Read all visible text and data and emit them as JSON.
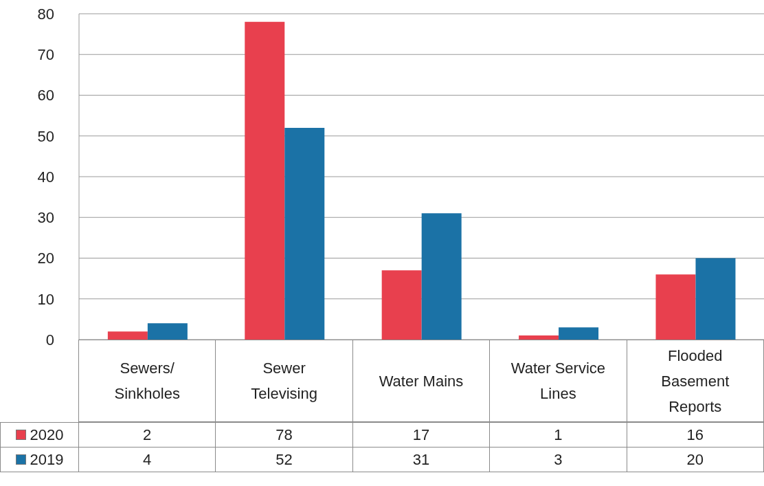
{
  "chart_data": {
    "type": "bar",
    "categories": [
      "Sewers/Sinkholes",
      "Sewer Televising",
      "Water Mains",
      "Water Service Lines",
      "Flooded Basement Reports"
    ],
    "series": [
      {
        "name": "2020",
        "color": "#e8404e",
        "values": [
          2,
          78,
          17,
          1,
          16
        ]
      },
      {
        "name": "2019",
        "color": "#1b72a6",
        "values": [
          4,
          52,
          31,
          3,
          20
        ]
      }
    ],
    "ylim": [
      0,
      80
    ],
    "yticks": [
      0,
      10,
      20,
      30,
      40,
      50,
      60,
      70,
      80
    ],
    "grid": "y",
    "legend": "bottom left",
    "data_labels": true
  }
}
